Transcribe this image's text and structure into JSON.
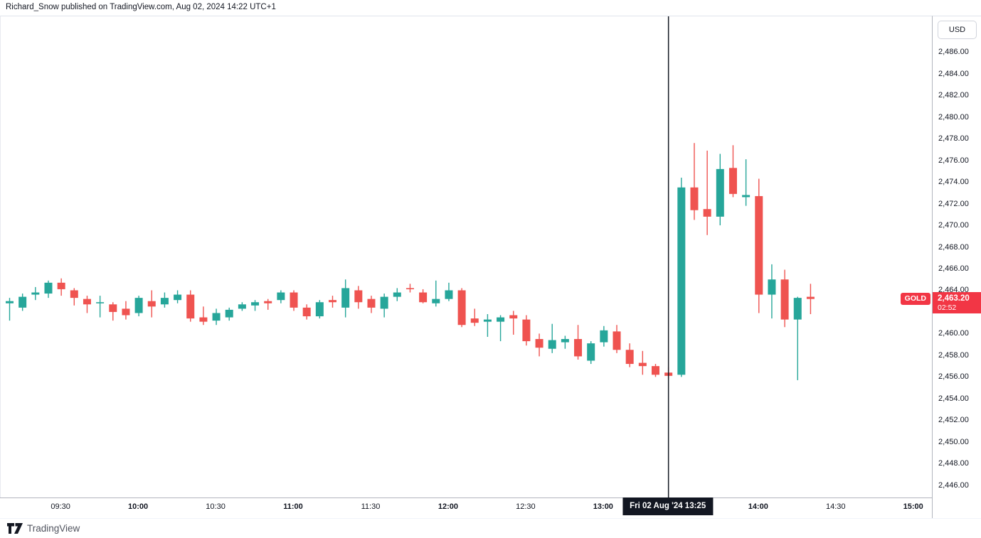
{
  "header": {
    "title": "Richard_Snow published on TradingView.com, Aug 02, 2024 14:22 UTC+1"
  },
  "footer": {
    "brand": "TradingView"
  },
  "colors": {
    "up": "#26A69A",
    "down": "#EF5350",
    "tag_bg": "#F23645",
    "crosshair": "#131722",
    "axis_line": "#B2B5BE",
    "hairline": "#E0E3EB",
    "text": "#131722"
  },
  "chart_data": {
    "type": "candlestick",
    "symbol": "GOLD",
    "currency": "USD",
    "interval": "5m",
    "grid": "off",
    "legend_position": "none",
    "ylim": [
      2444.8,
      2489.3
    ],
    "y_ticks": [
      2486,
      2484,
      2482,
      2480,
      2478,
      2476,
      2474,
      2472,
      2470,
      2468,
      2466,
      2464,
      2460,
      2458,
      2456,
      2454,
      2452,
      2450,
      2448,
      2446
    ],
    "x_axis": {
      "start_time": "09:10",
      "end_time": "14:20",
      "first_candle_x": 12.5,
      "candle_spacing": 18.16,
      "ticks": [
        {
          "label": "09:30",
          "bold": false
        },
        {
          "label": "10:00",
          "bold": true
        },
        {
          "label": "10:30",
          "bold": false
        },
        {
          "label": "11:00",
          "bold": true
        },
        {
          "label": "11:30",
          "bold": false
        },
        {
          "label": "12:00",
          "bold": true
        },
        {
          "label": "12:30",
          "bold": false
        },
        {
          "label": "13:00",
          "bold": true
        },
        {
          "label": "14:00",
          "bold": true
        },
        {
          "label": "14:30",
          "bold": false
        },
        {
          "label": "15:00",
          "bold": true
        }
      ]
    },
    "crosshair": {
      "time": "13:25",
      "label": "Fri 02 Aug '24  13:25"
    },
    "last_price": {
      "price": 2463.2,
      "value": "2,463.20",
      "countdown": "02:52",
      "direction": "down"
    },
    "candles": [
      [
        "09:10",
        2462.8,
        2463.3,
        2461.2,
        2463.0
      ],
      [
        "09:15",
        2462.4,
        2463.7,
        2462.1,
        2463.4
      ],
      [
        "09:20",
        2463.6,
        2464.3,
        2463.1,
        2463.8
      ],
      [
        "09:25",
        2463.7,
        2464.9,
        2463.3,
        2464.7
      ],
      [
        "09:30",
        2464.7,
        2465.1,
        2463.5,
        2464.1
      ],
      [
        "09:35",
        2464.0,
        2464.2,
        2462.6,
        2463.3
      ],
      [
        "09:40",
        2463.2,
        2463.5,
        2461.9,
        2462.7
      ],
      [
        "09:45",
        2462.8,
        2463.5,
        2461.5,
        2462.9
      ],
      [
        "09:50",
        2462.7,
        2462.9,
        2461.2,
        2462.0
      ],
      [
        "09:55",
        2462.3,
        2463.0,
        2461.3,
        2461.7
      ],
      [
        "10:00",
        2461.9,
        2463.5,
        2461.6,
        2463.3
      ],
      [
        "10:05",
        2463.0,
        2464.0,
        2461.5,
        2462.5
      ],
      [
        "10:10",
        2462.7,
        2463.8,
        2462.4,
        2463.3
      ],
      [
        "10:15",
        2463.1,
        2464.0,
        2462.8,
        2463.6
      ],
      [
        "10:20",
        2463.6,
        2464.0,
        2461.1,
        2461.4
      ],
      [
        "10:25",
        2461.5,
        2462.5,
        2460.8,
        2461.1
      ],
      [
        "10:30",
        2461.2,
        2462.3,
        2460.8,
        2461.9
      ],
      [
        "10:35",
        2461.5,
        2462.4,
        2461.2,
        2462.2
      ],
      [
        "10:40",
        2462.3,
        2462.9,
        2462.1,
        2462.7
      ],
      [
        "10:45",
        2462.6,
        2463.1,
        2462.1,
        2462.9
      ],
      [
        "10:50",
        2463.0,
        2463.2,
        2462.2,
        2462.8
      ],
      [
        "10:55",
        2463.1,
        2464.0,
        2462.8,
        2463.8
      ],
      [
        "11:00",
        2463.8,
        2464.0,
        2462.1,
        2462.4
      ],
      [
        "11:05",
        2462.4,
        2462.7,
        2461.3,
        2461.6
      ],
      [
        "11:10",
        2461.6,
        2463.1,
        2461.4,
        2462.9
      ],
      [
        "11:15",
        2463.1,
        2463.5,
        2462.4,
        2462.9
      ],
      [
        "11:20",
        2462.4,
        2465.0,
        2461.5,
        2464.2
      ],
      [
        "11:25",
        2464.0,
        2464.4,
        2462.3,
        2462.9
      ],
      [
        "11:30",
        2463.2,
        2463.5,
        2461.9,
        2462.4
      ],
      [
        "11:35",
        2462.3,
        2463.7,
        2461.5,
        2463.4
      ],
      [
        "11:40",
        2463.4,
        2464.2,
        2463.0,
        2463.8
      ],
      [
        "11:45",
        2464.2,
        2464.6,
        2463.8,
        2464.1
      ],
      [
        "11:50",
        2463.8,
        2464.1,
        2462.8,
        2462.9
      ],
      [
        "11:55",
        2462.8,
        2464.9,
        2462.5,
        2463.2
      ],
      [
        "12:00",
        2463.2,
        2464.7,
        2463.0,
        2464.0
      ],
      [
        "12:05",
        2464.0,
        2464.2,
        2460.6,
        2460.8
      ],
      [
        "12:10",
        2461.4,
        2462.3,
        2460.7,
        2461.0
      ],
      [
        "12:15",
        2461.1,
        2461.8,
        2459.7,
        2461.3
      ],
      [
        "12:20",
        2461.1,
        2461.7,
        2459.3,
        2461.5
      ],
      [
        "12:25",
        2461.7,
        2462.1,
        2459.9,
        2461.4
      ],
      [
        "12:30",
        2461.3,
        2461.7,
        2458.9,
        2459.3
      ],
      [
        "12:35",
        2459.5,
        2460.0,
        2457.9,
        2458.7
      ],
      [
        "12:40",
        2458.6,
        2460.9,
        2458.2,
        2459.4
      ],
      [
        "12:45",
        2459.2,
        2459.8,
        2458.6,
        2459.5
      ],
      [
        "12:50",
        2459.5,
        2460.8,
        2457.6,
        2457.9
      ],
      [
        "12:55",
        2457.5,
        2459.3,
        2457.2,
        2459.1
      ],
      [
        "13:00",
        2459.2,
        2460.7,
        2458.8,
        2460.3
      ],
      [
        "13:05",
        2460.2,
        2460.8,
        2458.2,
        2458.5
      ],
      [
        "13:10",
        2458.5,
        2459.1,
        2456.9,
        2457.2
      ],
      [
        "13:15",
        2457.3,
        2458.4,
        2456.2,
        2457.0
      ],
      [
        "13:20",
        2457.0,
        2457.2,
        2456.0,
        2456.2
      ],
      [
        "13:25",
        2456.4,
        2456.9,
        2455.8,
        2456.1
      ],
      [
        "13:30",
        2456.2,
        2474.4,
        2456.0,
        2473.5
      ],
      [
        "13:35",
        2473.5,
        2477.6,
        2470.5,
        2471.4
      ],
      [
        "13:40",
        2471.5,
        2476.9,
        2469.1,
        2470.8
      ],
      [
        "13:45",
        2470.8,
        2476.6,
        2470.0,
        2475.2
      ],
      [
        "13:50",
        2475.3,
        2477.4,
        2472.6,
        2472.9
      ],
      [
        "13:55",
        2472.6,
        2476.1,
        2471.8,
        2472.8
      ],
      [
        "14:00",
        2472.7,
        2474.3,
        2461.9,
        2463.6
      ],
      [
        "14:05",
        2463.6,
        2466.4,
        2461.4,
        2465.0
      ],
      [
        "14:10",
        2465.0,
        2465.9,
        2460.6,
        2461.3
      ],
      [
        "14:15",
        2461.3,
        2463.4,
        2455.7,
        2463.3
      ],
      [
        "14:20",
        2463.4,
        2464.6,
        2461.8,
        2463.2
      ]
    ]
  }
}
